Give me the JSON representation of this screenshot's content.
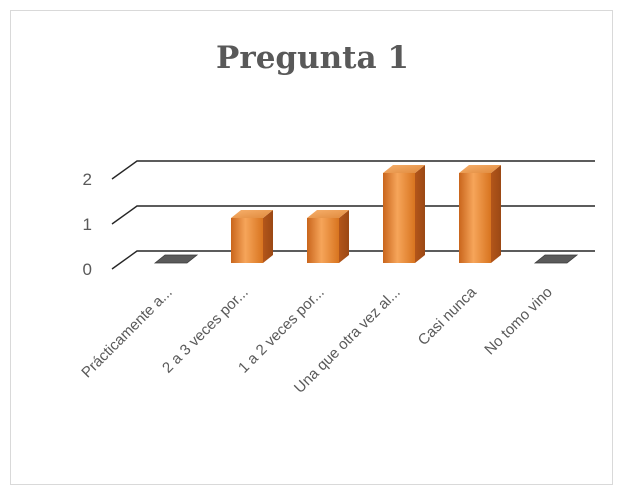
{
  "chart_data": {
    "type": "bar",
    "title": "Pregunta 1",
    "categories": [
      "Prácticamente a...",
      "2 a 3 veces por...",
      "1 a 2 veces por...",
      "Una que otra vez al...",
      "Casi nunca",
      "No tomo vino"
    ],
    "values": [
      0,
      1,
      1,
      2,
      2,
      0
    ],
    "ylim": [
      0,
      2
    ],
    "yticks": [
      "0",
      "1",
      "2"
    ],
    "grid": true,
    "legend": "none",
    "bar_color": "#ed8a2f"
  }
}
